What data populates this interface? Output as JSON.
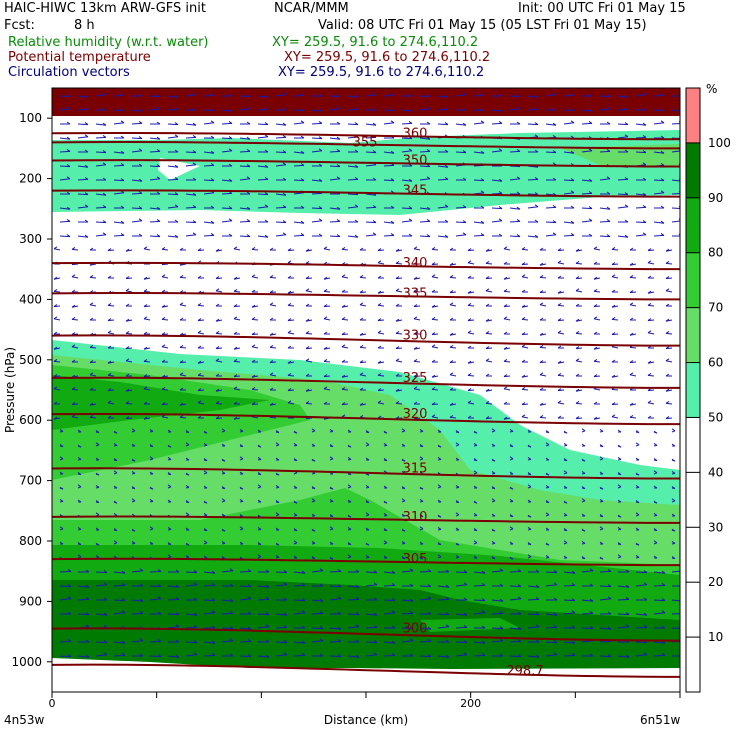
{
  "header": {
    "title": "HAIC-HIWC 13km ARW-GFS init",
    "org": "NCAR/MMM",
    "init": "Init: 00 UTC Fri 01 May 15",
    "fcst_label": "Fcst:",
    "fcst_value": "8 h",
    "valid": "Valid: 08 UTC Fri 01 May 15 (05 LST Fri 01 May 15)"
  },
  "fields": [
    {
      "name": "Relative humidity (w.r.t. water)",
      "xy": "XY= 259.5, 91.6 to 274.6,110.2",
      "color": "#0a8a0a"
    },
    {
      "name": "Potential temperature",
      "xy": "XY= 259.5, 91.6 to 274.6,110.2",
      "color": "#7a0000"
    },
    {
      "name": "Circulation vectors",
      "xy": "XY= 259.5, 91.6 to 274.6,110.2",
      "color": "#00007a"
    }
  ],
  "chart_data": {
    "type": "heatmap",
    "ylabel": "Pressure (hPa)",
    "xlabel": "Distance (km)",
    "x_ticks": [
      "0",
      "200"
    ],
    "y_ticks": [
      "100",
      "200",
      "300",
      "400",
      "500",
      "600",
      "700",
      "800",
      "900",
      "1000"
    ],
    "xlim": [
      0,
      300
    ],
    "ylim": [
      1050,
      50
    ],
    "left_label": "4n53w",
    "right_label": "6n51w",
    "colorbar": {
      "unit": "%",
      "ticks": [
        "10",
        "20",
        "30",
        "40",
        "50",
        "60",
        "70",
        "80",
        "90",
        "100"
      ],
      "bands": [
        {
          "from": 50,
          "to": 60,
          "color": "#55eeaa"
        },
        {
          "from": 60,
          "to": 70,
          "color": "#66dd66"
        },
        {
          "from": 70,
          "to": 80,
          "color": "#33cc33"
        },
        {
          "from": 80,
          "to": 90,
          "color": "#11aa11"
        },
        {
          "from": 90,
          "to": 100,
          "color": "#007a00"
        },
        {
          "from": 100,
          "to": 110,
          "color": "#ff8080"
        }
      ]
    },
    "theta_contours": [
      {
        "label": "360",
        "p": 125
      },
      {
        "label": "355",
        "p": 140
      },
      {
        "label": "350",
        "p": 170
      },
      {
        "label": "345",
        "p": 220
      },
      {
        "label": "340",
        "p": 340
      },
      {
        "label": "335",
        "p": 390
      },
      {
        "label": "330",
        "p": 460
      },
      {
        "label": "325",
        "p": 530
      },
      {
        "label": "320",
        "p": 590
      },
      {
        "label": "315",
        "p": 680
      },
      {
        "label": "310",
        "p": 760
      },
      {
        "label": "305",
        "p": 830
      },
      {
        "label": "300",
        "p": 945
      },
      {
        "label": "298.7",
        "p": 1005
      }
    ]
  }
}
